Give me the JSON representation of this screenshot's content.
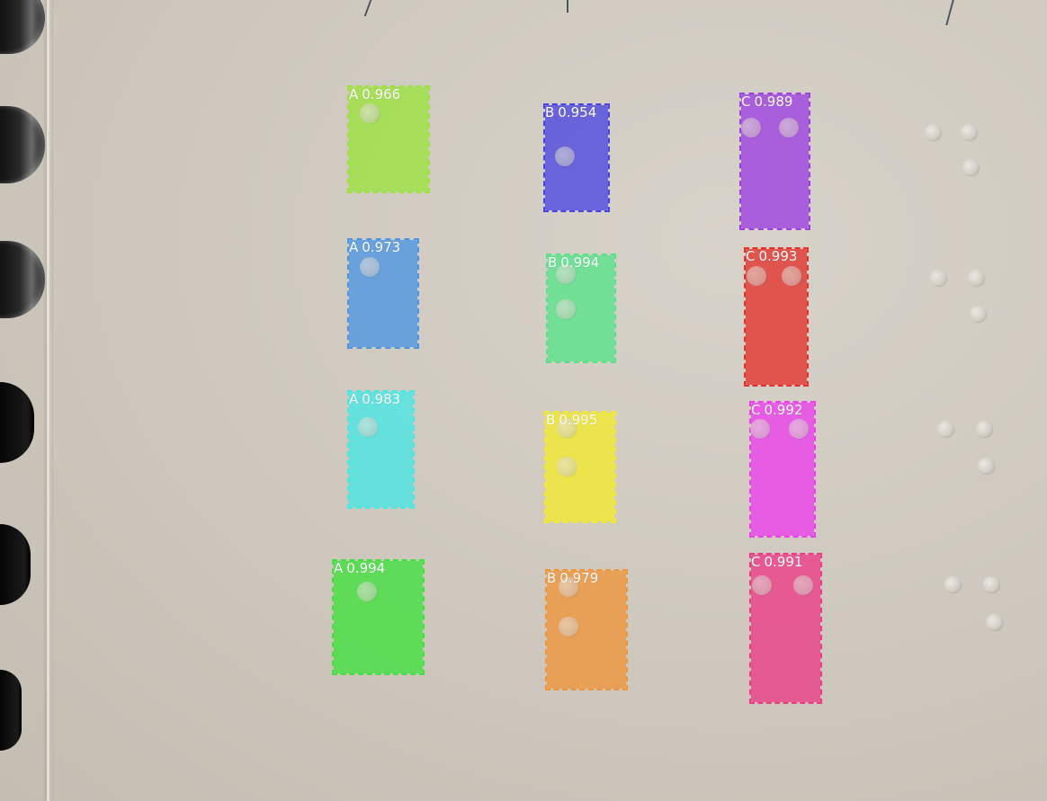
{
  "image": {
    "description_type": "braille-detection-overlay"
  },
  "detections": [
    {
      "cls": "A",
      "score": "0.966",
      "color": "#9be33c"
    },
    {
      "cls": "A",
      "score": "0.973",
      "color": "#4b95e3"
    },
    {
      "cls": "A",
      "score": "0.983",
      "color": "#46e8e6"
    },
    {
      "cls": "A",
      "score": "0.994",
      "color": "#3fe23c"
    },
    {
      "cls": "B",
      "score": "0.954",
      "color": "#4a45e0"
    },
    {
      "cls": "B",
      "score": "0.994",
      "color": "#55e388"
    },
    {
      "cls": "B",
      "score": "0.995",
      "color": "#f2ea2b"
    },
    {
      "cls": "B",
      "score": "0.979",
      "color": "#f0953a"
    },
    {
      "cls": "C",
      "score": "0.989",
      "color": "#9c3ee0"
    },
    {
      "cls": "C",
      "score": "0.993",
      "color": "#e2322b"
    },
    {
      "cls": "C",
      "score": "0.992",
      "color": "#ec3eed"
    },
    {
      "cls": "C",
      "score": "0.991",
      "color": "#ec3a85"
    }
  ]
}
